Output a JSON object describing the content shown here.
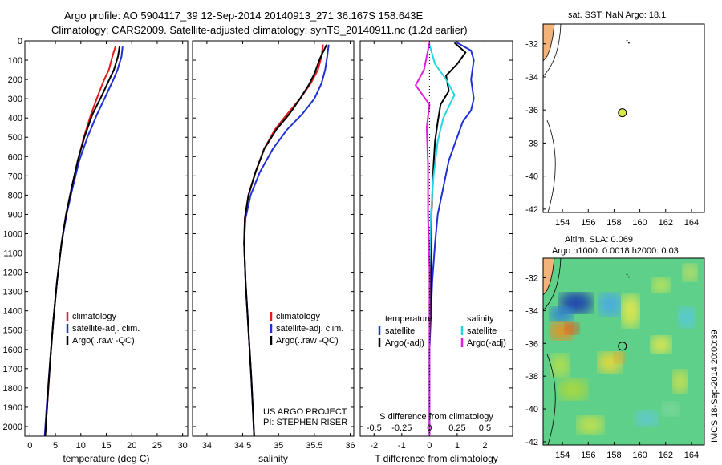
{
  "title_line1": "Argo profile: AO 5904117_39 12-Sep-2014 20140913_271 36.167S 158.643E",
  "title_line2": "Climatology: CARS2009. Satellite-adjusted climatology: synTS_20140911.nc (1.2d earlier)",
  "project_line1": "US ARGO PROJECT",
  "project_line2": "PI: STEPHEN RISER",
  "watermark": "IMOS 18-Sep-2014 20:00:39",
  "colors": {
    "climatology": "#e41a1c",
    "satellite": "#1f2fd6",
    "argo": "#000000",
    "salinity_sat": "#22d6e0",
    "salinity_argo": "#e020d8",
    "land": "#f2b47a",
    "dot": "#d8e84a"
  },
  "chart_data": [
    {
      "type": "line",
      "xlabel": "temperature (deg C)",
      "xlim": [
        -1,
        31
      ],
      "ylim": [
        2050,
        0
      ],
      "xticks": [
        "0",
        "5",
        "10",
        "15",
        "20",
        "25",
        "30"
      ],
      "yticks": [
        "0",
        "100",
        "200",
        "300",
        "400",
        "500",
        "600",
        "700",
        "800",
        "900",
        "1000",
        "1100",
        "1200",
        "1300",
        "1400",
        "1500",
        "1600",
        "1700",
        "1800",
        "1900",
        "2000"
      ],
      "legend": [
        "climatology",
        "satellite-adj. clim.",
        "Argo(..raw -QC)"
      ],
      "series": [
        {
          "name": "climatology",
          "color": "#e41a1c",
          "points": [
            [
              16.8,
              30
            ],
            [
              16.2,
              80
            ],
            [
              15.5,
              150
            ],
            [
              14.6,
              200
            ],
            [
              13.4,
              280
            ],
            [
              12.0,
              380
            ],
            [
              10.6,
              500
            ],
            [
              9.4,
              620
            ],
            [
              8.2,
              760
            ],
            [
              7.1,
              900
            ],
            [
              6.2,
              1050
            ],
            [
              5.3,
              1250
            ],
            [
              4.6,
              1450
            ],
            [
              4.0,
              1650
            ],
            [
              3.5,
              1850
            ],
            [
              3.0,
              2050
            ]
          ]
        },
        {
          "name": "satellite-adj. clim.",
          "color": "#1f2fd6",
          "points": [
            [
              18.2,
              30
            ],
            [
              18.0,
              80
            ],
            [
              17.2,
              150
            ],
            [
              16.4,
              200
            ],
            [
              15.0,
              280
            ],
            [
              13.2,
              380
            ],
            [
              11.3,
              500
            ],
            [
              9.7,
              620
            ],
            [
              8.4,
              760
            ],
            [
              7.2,
              900
            ],
            [
              6.2,
              1050
            ],
            [
              5.3,
              1250
            ],
            [
              4.6,
              1450
            ],
            [
              4.0,
              1650
            ],
            [
              3.4,
              1850
            ],
            [
              2.9,
              2050
            ]
          ]
        },
        {
          "name": "Argo(..raw -QC)",
          "color": "#000000",
          "points": [
            [
              17.6,
              30
            ],
            [
              17.3,
              80
            ],
            [
              16.5,
              150
            ],
            [
              15.6,
              200
            ],
            [
              14.2,
              280
            ],
            [
              12.3,
              380
            ],
            [
              10.7,
              500
            ],
            [
              9.4,
              620
            ],
            [
              8.2,
              760
            ],
            [
              7.1,
              900
            ],
            [
              6.2,
              1050
            ],
            [
              5.3,
              1250
            ],
            [
              4.6,
              1450
            ],
            [
              4.0,
              1650
            ],
            [
              3.5,
              1850
            ],
            [
              3.0,
              2050
            ]
          ]
        }
      ]
    },
    {
      "type": "line",
      "xlabel": "salinity",
      "xlim": [
        33.8,
        36.05
      ],
      "ylim": [
        2050,
        0
      ],
      "xticks": [
        "34",
        "34.5",
        "35",
        "35.5",
        "36"
      ],
      "legend": [
        "climatology",
        "satellite-adj. clim.",
        "Argo(..raw -QC)"
      ],
      "series": [
        {
          "name": "climatology",
          "color": "#e41a1c",
          "points": [
            [
              35.62,
              20
            ],
            [
              35.6,
              80
            ],
            [
              35.55,
              150
            ],
            [
              35.45,
              220
            ],
            [
              35.3,
              300
            ],
            [
              35.12,
              380
            ],
            [
              34.95,
              460
            ],
            [
              34.8,
              560
            ],
            [
              34.68,
              680
            ],
            [
              34.58,
              800
            ],
            [
              34.53,
              920
            ],
            [
              34.52,
              1050
            ],
            [
              34.54,
              1250
            ],
            [
              34.58,
              1500
            ],
            [
              34.62,
              1750
            ],
            [
              34.66,
              2050
            ]
          ]
        },
        {
          "name": "satellite-adj. clim.",
          "color": "#1f2fd6",
          "points": [
            [
              35.7,
              20
            ],
            [
              35.68,
              80
            ],
            [
              35.65,
              150
            ],
            [
              35.6,
              220
            ],
            [
              35.5,
              300
            ],
            [
              35.33,
              380
            ],
            [
              35.12,
              460
            ],
            [
              34.92,
              560
            ],
            [
              34.74,
              680
            ],
            [
              34.61,
              800
            ],
            [
              34.54,
              920
            ],
            [
              34.52,
              1050
            ],
            [
              34.54,
              1250
            ],
            [
              34.58,
              1500
            ],
            [
              34.62,
              1750
            ],
            [
              34.66,
              2050
            ]
          ]
        },
        {
          "name": "Argo(..raw -QC)",
          "color": "#000000",
          "points": [
            [
              35.67,
              20
            ],
            [
              35.58,
              90
            ],
            [
              35.5,
              170
            ],
            [
              35.42,
              230
            ],
            [
              35.3,
              300
            ],
            [
              35.15,
              380
            ],
            [
              34.97,
              460
            ],
            [
              34.8,
              560
            ],
            [
              34.68,
              680
            ],
            [
              34.58,
              800
            ],
            [
              34.53,
              920
            ],
            [
              34.52,
              1050
            ],
            [
              34.54,
              1250
            ],
            [
              34.58,
              1500
            ],
            [
              34.62,
              1750
            ],
            [
              34.66,
              2050
            ]
          ]
        }
      ]
    },
    {
      "type": "line",
      "xlabel": "T difference from climatology",
      "xlabel_top": "S difference from climatology",
      "xlim": [
        -2.5,
        3
      ],
      "ylim": [
        2050,
        0
      ],
      "xticks": [
        "-2",
        "-1",
        "0",
        "1",
        "2"
      ],
      "xticks_top": [
        "-0.5",
        "-0.25",
        "0",
        "0.25",
        "0.5"
      ],
      "legend_left": {
        "title": "temperature",
        "items": [
          "satellite",
          "Argo(-adj)"
        ]
      },
      "legend_right": {
        "title": "salinity",
        "items": [
          "satellite",
          "Argo(-adj)"
        ]
      },
      "series": [
        {
          "name": "temperature satellite",
          "color": "#1f2fd6",
          "points": [
            [
              1.0,
              10
            ],
            [
              1.5,
              50
            ],
            [
              1.6,
              100
            ],
            [
              1.5,
              200
            ],
            [
              1.6,
              300
            ],
            [
              1.5,
              360
            ],
            [
              1.2,
              420
            ],
            [
              1.0,
              500
            ],
            [
              0.7,
              620
            ],
            [
              0.5,
              760
            ],
            [
              0.3,
              900
            ],
            [
              0.2,
              1050
            ],
            [
              0.1,
              1250
            ],
            [
              0.0,
              1600
            ],
            [
              0.0,
              2050
            ]
          ]
        },
        {
          "name": "temperature Argo(-adj)",
          "color": "#000000",
          "points": [
            [
              0.9,
              10
            ],
            [
              1.3,
              60
            ],
            [
              1.0,
              120
            ],
            [
              0.6,
              180
            ],
            [
              0.7,
              260
            ],
            [
              0.4,
              330
            ],
            [
              0.3,
              420
            ],
            [
              0.2,
              520
            ],
            [
              0.15,
              640
            ],
            [
              0.1,
              800
            ],
            [
              0.05,
              1000
            ],
            [
              0.05,
              1300
            ],
            [
              0.0,
              1600
            ],
            [
              0.0,
              2050
            ]
          ]
        },
        {
          "name": "salinity satellite",
          "color": "#22d6e0",
          "points": [
            [
              0.0,
              20
            ],
            [
              0.2,
              120
            ],
            [
              0.6,
              200
            ],
            [
              0.9,
              280
            ],
            [
              0.5,
              400
            ],
            [
              0.3,
              520
            ],
            [
              0.15,
              700
            ],
            [
              0.05,
              900
            ],
            [
              0.0,
              1200
            ],
            [
              0.0,
              2050
            ]
          ]
        },
        {
          "name": "salinity Argo(-adj)",
          "color": "#e020d8",
          "points": [
            [
              0.0,
              10
            ],
            [
              -0.2,
              150
            ],
            [
              -0.5,
              230
            ],
            [
              0.0,
              330
            ],
            [
              -0.1,
              450
            ],
            [
              -0.05,
              650
            ],
            [
              -0.05,
              900
            ],
            [
              0.0,
              1200
            ],
            [
              0.0,
              2050
            ]
          ]
        }
      ]
    },
    {
      "type": "scatter",
      "title": "sat. SST: NaN Argo: 18.1",
      "xlim": [
        152.5,
        165
      ],
      "ylim": [
        -42.2,
        -30.8
      ],
      "xticks": [
        "154",
        "156",
        "158",
        "160",
        "162",
        "164"
      ],
      "yticks": [
        "-32",
        "-34",
        "-36",
        "-38",
        "-40",
        "-42"
      ],
      "points": [
        {
          "x": 158.643,
          "y": -36.167
        }
      ]
    },
    {
      "type": "heatmap",
      "title_line1": "Altim. SLA: 0.069",
      "title_line2": "Argo h1000: 0.0018 h2000: 0.03",
      "xlim": [
        152.5,
        165
      ],
      "ylim": [
        -42.2,
        -30.8
      ],
      "xticks": [
        "154",
        "156",
        "158",
        "160",
        "162",
        "164"
      ],
      "yticks": [
        "-32",
        "-34",
        "-36",
        "-38",
        "-40",
        "-42"
      ],
      "points": [
        {
          "x": 158.643,
          "y": -36.167
        }
      ]
    }
  ]
}
